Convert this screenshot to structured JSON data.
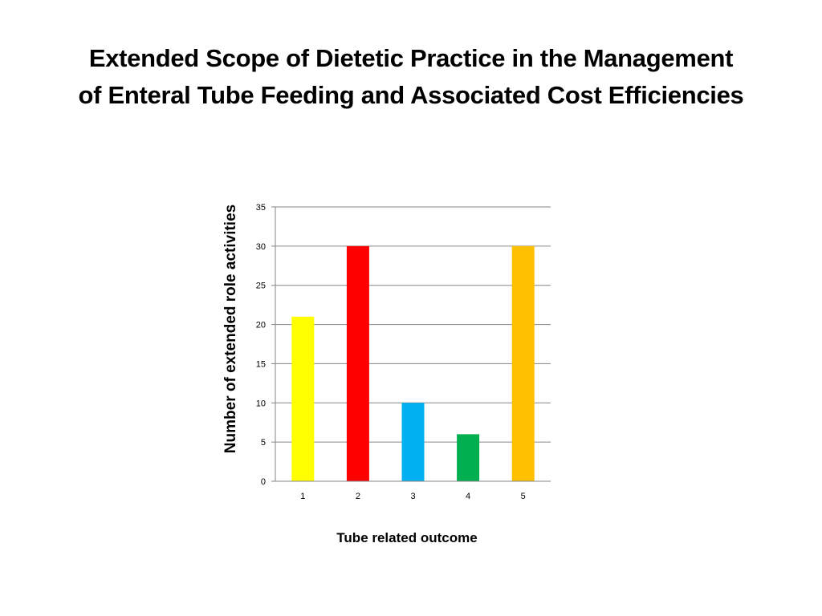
{
  "slide": {
    "title_line1": "Extended Scope of Dietetic Practice in the Management",
    "title_line2": "of Enteral Tube Feeding and Associated Cost Efficiencies"
  },
  "chart_data": {
    "type": "bar",
    "title": "",
    "xlabel": "Tube related outcome",
    "ylabel": "Number of extended role activities",
    "categories": [
      "1",
      "2",
      "3",
      "4",
      "5"
    ],
    "values": [
      21,
      30,
      10,
      6,
      30
    ],
    "colors": [
      "#FFFF00",
      "#FF0000",
      "#00B0F0",
      "#00B050",
      "#FFC000"
    ],
    "ylim": [
      0,
      35
    ],
    "yticks": [
      0,
      5,
      10,
      15,
      20,
      25,
      30,
      35
    ],
    "grid": true,
    "gridline_color": "#868686",
    "legend": "none"
  }
}
